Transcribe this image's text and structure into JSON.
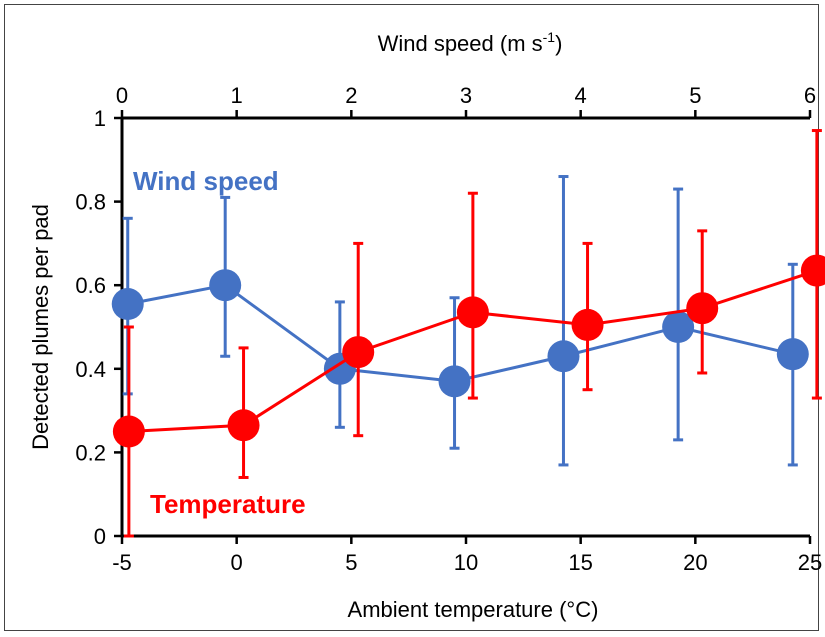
{
  "chart_data": {
    "type": "line",
    "ylabel": "Detected plumes per pad",
    "ylim": [
      0,
      1
    ],
    "yticks": [
      "0",
      "0.2",
      "0.4",
      "0.6",
      "0.8",
      "1"
    ],
    "bottom_axis": {
      "title": "Ambient temperature (°C)",
      "range": [
        -5,
        25
      ],
      "ticks": [
        "-5",
        "0",
        "5",
        "10",
        "15",
        "20",
        "25"
      ]
    },
    "top_axis": {
      "title_main": "Wind speed (m s",
      "title_sup": "-1",
      "title_end": ")",
      "range": [
        0,
        6
      ],
      "ticks": [
        "0",
        "1",
        "2",
        "3",
        "4",
        "5",
        "6"
      ]
    },
    "series": [
      {
        "name": "Wind speed",
        "axis": "top",
        "color": "#4472C4",
        "x": [
          0.05,
          0.9,
          1.9,
          2.9,
          3.85,
          4.85,
          5.85
        ],
        "y": [
          0.555,
          0.6,
          0.4,
          0.37,
          0.43,
          0.5,
          0.435
        ],
        "err_high": [
          0.76,
          0.81,
          0.56,
          0.57,
          0.86,
          0.83,
          0.65
        ],
        "err_low": [
          0.34,
          0.43,
          0.26,
          0.21,
          0.17,
          0.23,
          0.17
        ]
      },
      {
        "name": "Temperature",
        "axis": "bottom",
        "color": "#FF0000",
        "x": [
          -4.7,
          0.3,
          5.3,
          10.3,
          15.3,
          20.3,
          25.3
        ],
        "y": [
          0.25,
          0.265,
          0.44,
          0.535,
          0.505,
          0.545,
          0.635
        ],
        "err_high": [
          0.5,
          0.45,
          0.7,
          0.82,
          0.7,
          0.73,
          0.97
        ],
        "err_low": [
          0.0,
          0.14,
          0.24,
          0.33,
          0.35,
          0.39,
          0.33
        ]
      }
    ]
  }
}
